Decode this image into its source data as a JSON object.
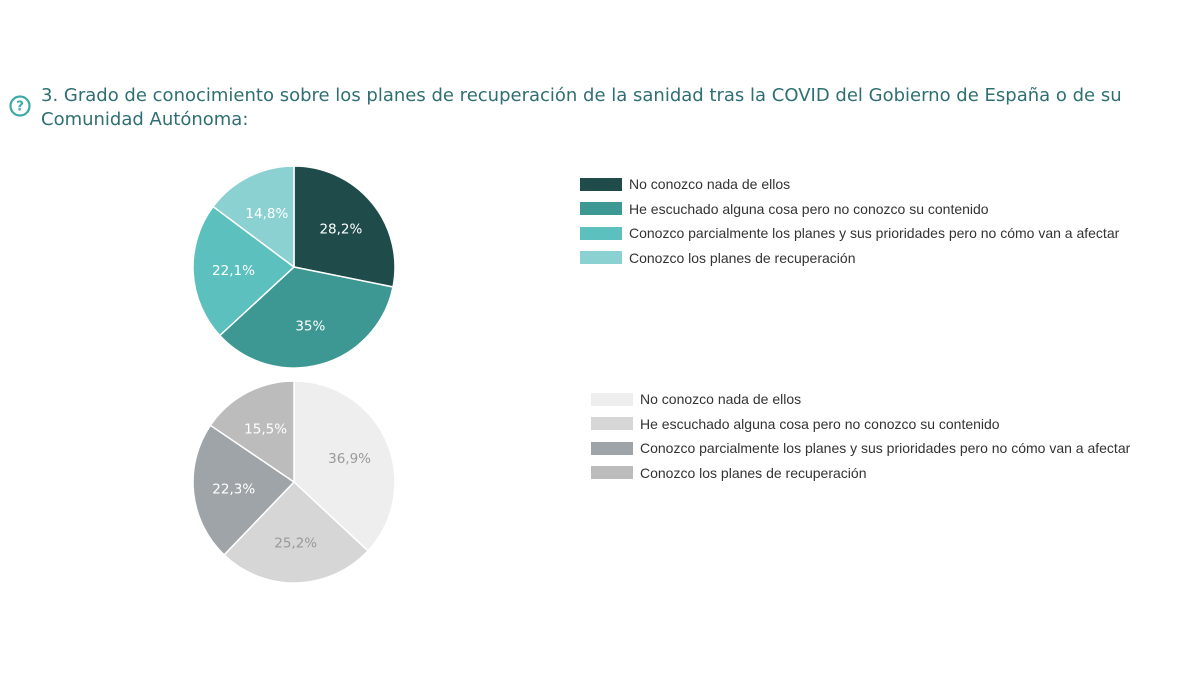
{
  "title": "3. Grado de conocimiento sobre los planes de recuperación de la sanidad tras la COVID del Gobierno de España o de su Comunidad Autónoma:",
  "icons": {
    "help": "question-circle-icon"
  },
  "colors": {
    "title": "#2f6f73",
    "help_icon": "#3aaba6",
    "top_series": [
      "#1f4b4b",
      "#3d9893",
      "#5bc0be",
      "#8cd1d1"
    ],
    "bottom_series": [
      "#eeeeee",
      "#d6d6d6",
      "#9ea4a8",
      "#bcbcbc"
    ]
  },
  "chart_data": [
    {
      "type": "pie",
      "categories": [
        "No conozco nada de ellos",
        "He escuchado alguna cosa pero no conozco su contenido",
        "Conozco parcialmente los planes y sus prioridades pero no cómo van a afectar",
        "Conozco los planes de recuperación"
      ],
      "values": [
        28.2,
        35,
        22.1,
        14.8
      ],
      "data_labels": [
        "28,2%",
        "35%",
        "22,1%",
        "14,8%"
      ],
      "colors": [
        "#1f4b4b",
        "#3d9893",
        "#5bc0be",
        "#8cd1d1"
      ],
      "label_colors": [
        "#ffffff",
        "#ffffff",
        "#ffffff",
        "#ffffff"
      ],
      "start_angle_deg": 0,
      "direction": "clockwise",
      "legend_position": "right"
    },
    {
      "type": "pie",
      "categories": [
        "No conozco nada de ellos",
        "He escuchado alguna cosa pero no conozco su contenido",
        "Conozco parcialmente los planes y sus prioridades pero no cómo van a afectar",
        "Conozco los planes de recuperación"
      ],
      "values": [
        36.9,
        25.2,
        22.3,
        15.5
      ],
      "data_labels": [
        "36,9%",
        "25,2%",
        "22,3%",
        "15,5%"
      ],
      "colors": [
        "#eeeeee",
        "#d6d6d6",
        "#9ea4a8",
        "#bcbcbc"
      ],
      "label_colors": [
        "#9a9a9a",
        "#9a9a9a",
        "#ffffff",
        "#ffffff"
      ],
      "start_angle_deg": 0,
      "direction": "clockwise",
      "legend_position": "right"
    }
  ]
}
